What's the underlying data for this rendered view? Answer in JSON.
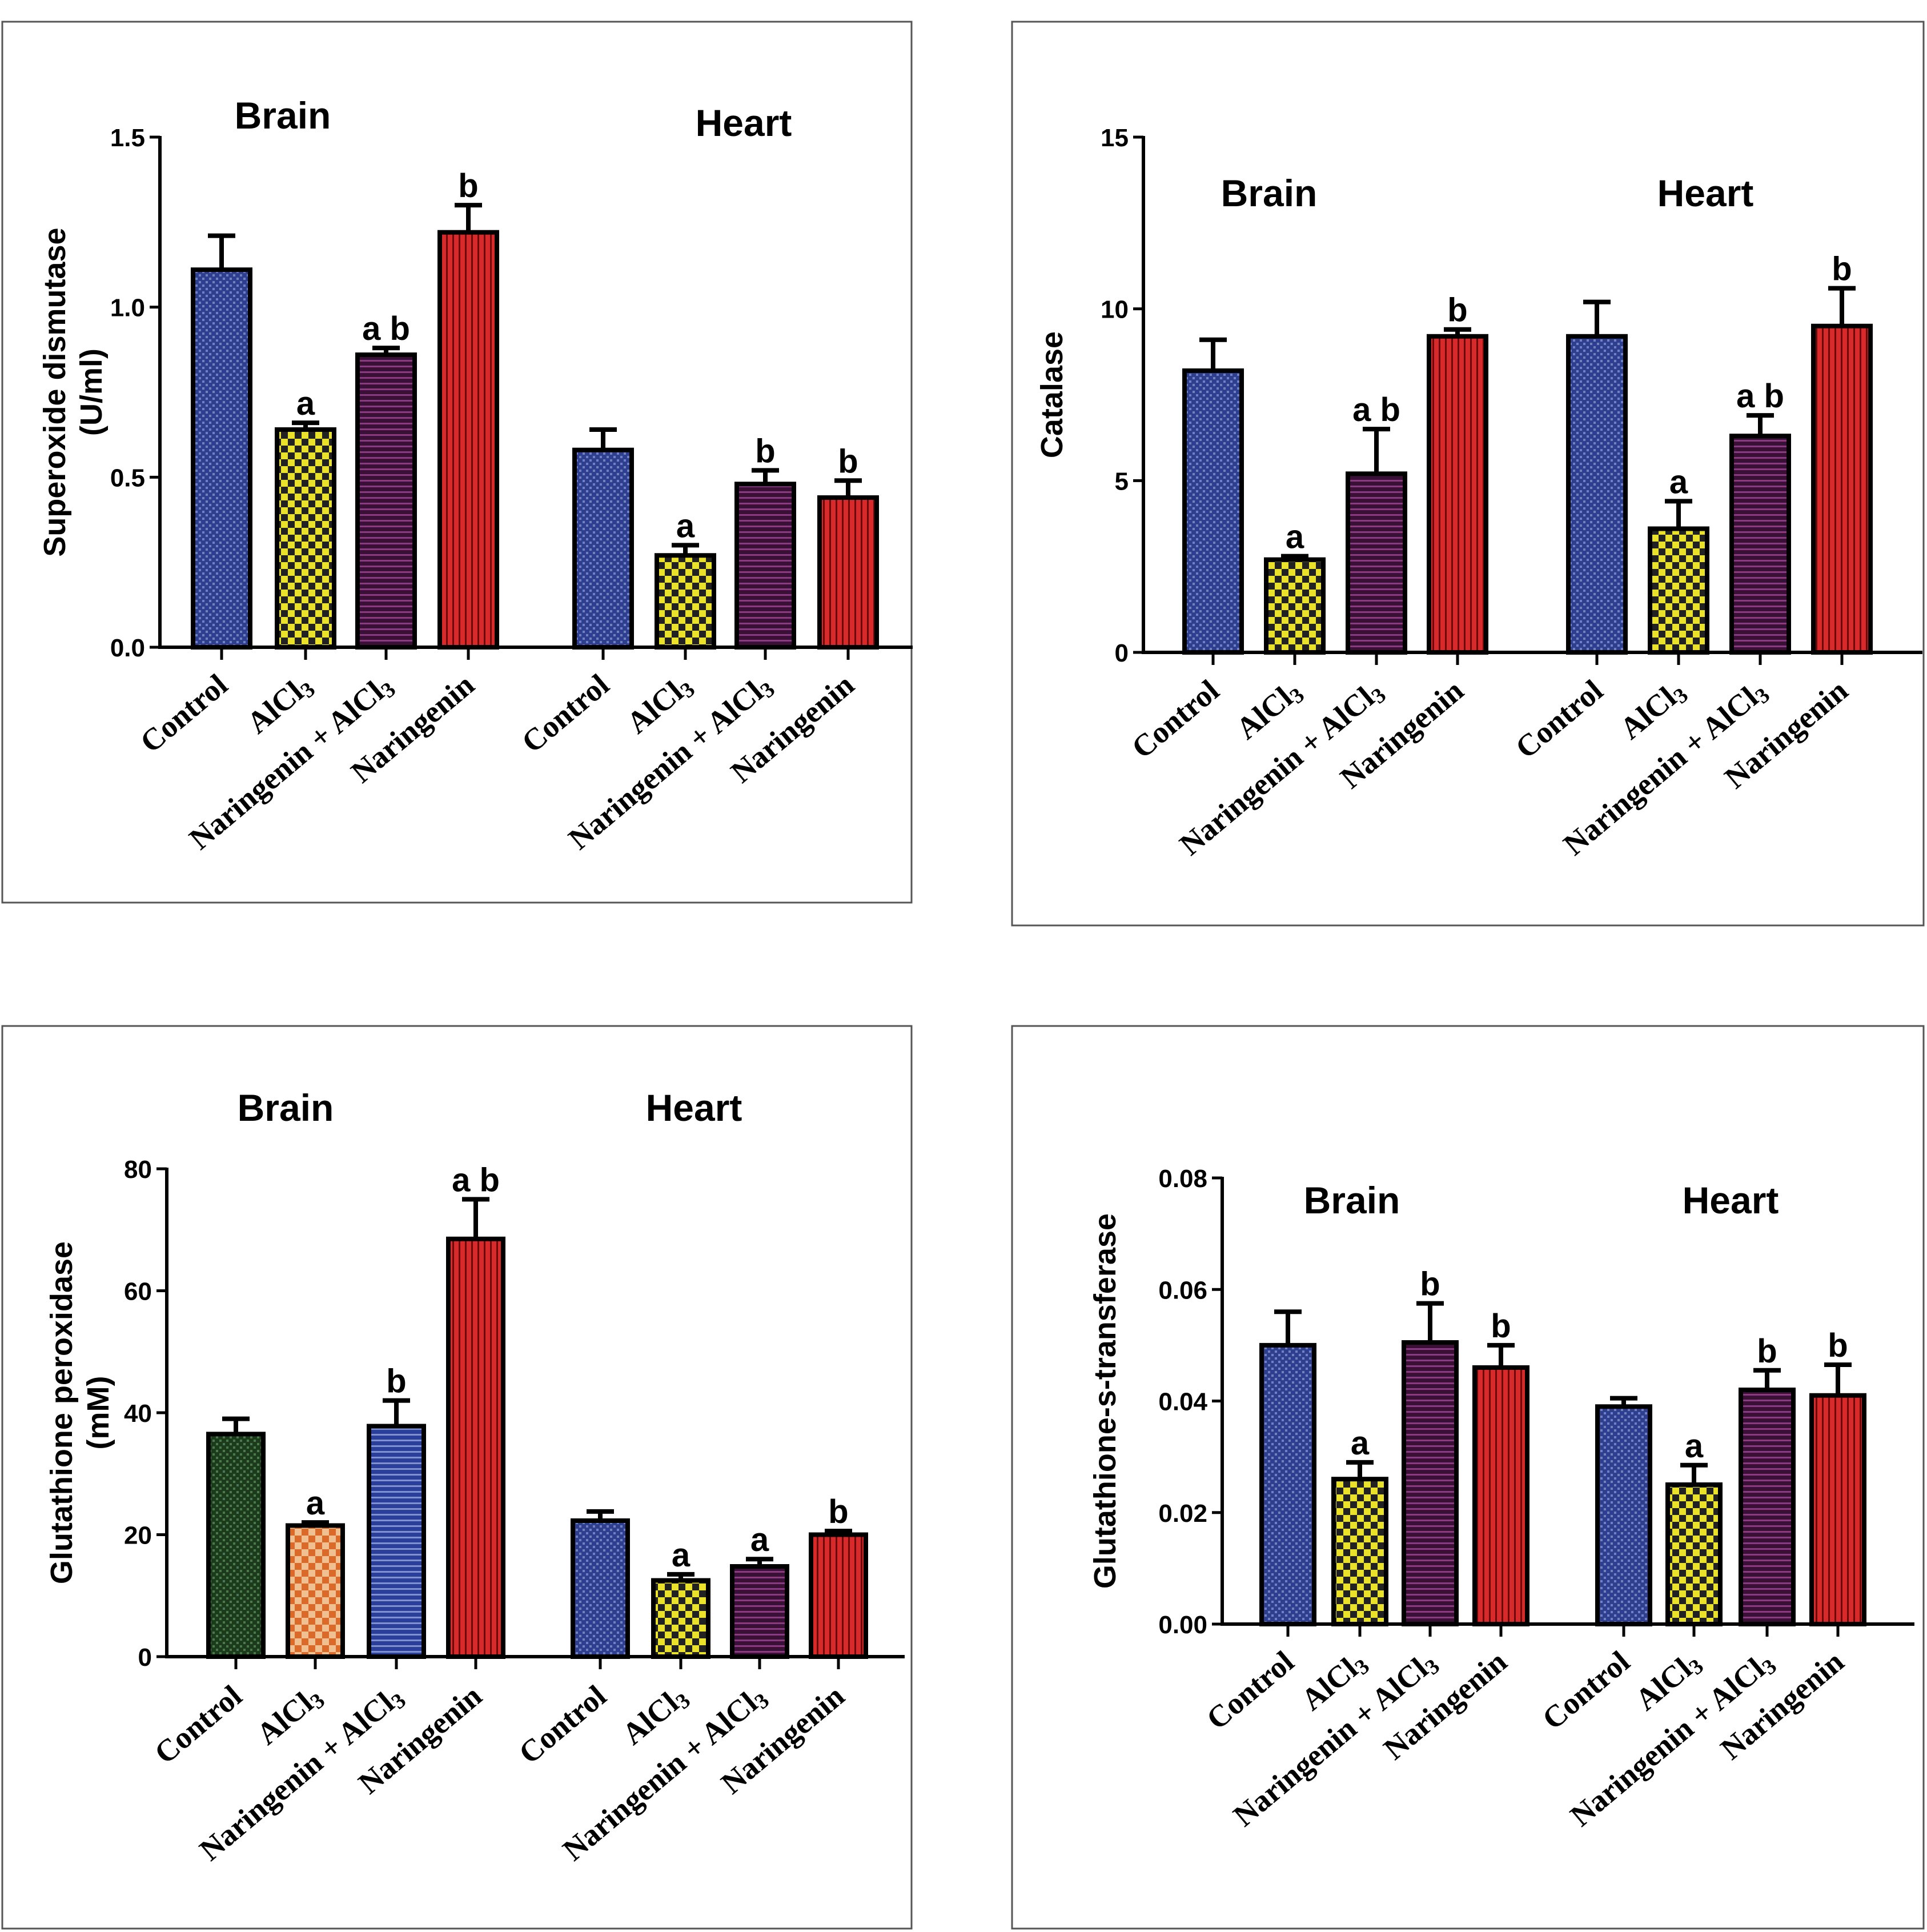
{
  "figure": {
    "colors": {
      "navy": "#2e3f8f",
      "yellow": "#e9e12a",
      "plum": "#3a1037",
      "red": "#d82a2a",
      "darkgreen": "#1c3a1c",
      "orange": "#d96a2a",
      "blue": "#2a3f9a",
      "navy_line": "#7080c0",
      "yellow_line": "#222222",
      "plum_line": "#8a3a80",
      "red_line": "#6a0a0a",
      "darkgreen_line": "#4a7a4a",
      "orange_line": "#f0c090",
      "blue_line": "#8090d0"
    }
  },
  "chart_data": [
    {
      "type": "bar",
      "id": "sod",
      "ylabel_lines": [
        "Superoxide dismutase",
        "(U/ml)"
      ],
      "ylim": [
        0,
        1.5
      ],
      "yticks": [
        "0.0",
        "0.5",
        "1.0",
        "1.5"
      ],
      "groups": [
        {
          "name": "Brain",
          "bars": [
            {
              "category": "Control",
              "value": 1.11,
              "error": 0.1,
              "sig": "",
              "fill": "navy"
            },
            {
              "category": "AlCl3",
              "value": 0.64,
              "error": 0.02,
              "sig": "a",
              "fill": "yellow"
            },
            {
              "category": "Naringenin + AlCl3",
              "value": 0.86,
              "error": 0.02,
              "sig": "a b",
              "fill": "plum"
            },
            {
              "category": "Naringenin",
              "value": 1.22,
              "error": 0.08,
              "sig": "b",
              "fill": "red"
            }
          ]
        },
        {
          "name": "Heart",
          "bars": [
            {
              "category": "Control",
              "value": 0.58,
              "error": 0.06,
              "sig": "",
              "fill": "navy"
            },
            {
              "category": "AlCl3",
              "value": 0.27,
              "error": 0.03,
              "sig": "a",
              "fill": "yellow"
            },
            {
              "category": "Naringenin + AlCl3",
              "value": 0.48,
              "error": 0.04,
              "sig": "b",
              "fill": "plum"
            },
            {
              "category": "Naringenin",
              "value": 0.44,
              "error": 0.05,
              "sig": "b",
              "fill": "red"
            }
          ]
        }
      ]
    },
    {
      "type": "bar",
      "id": "catalase",
      "ylabel_lines": [
        "Catalase"
      ],
      "ylim": [
        0,
        15
      ],
      "yticks": [
        "0",
        "5",
        "10",
        "15"
      ],
      "groups": [
        {
          "name": "Brain",
          "bars": [
            {
              "category": "Control",
              "value": 8.2,
              "error": 0.9,
              "sig": "",
              "fill": "navy"
            },
            {
              "category": "AlCl3",
              "value": 2.7,
              "error": 0.1,
              "sig": "a",
              "fill": "yellow"
            },
            {
              "category": "Naringenin + AlCl3",
              "value": 5.2,
              "error": 1.3,
              "sig": "a b",
              "fill": "plum"
            },
            {
              "category": "Naringenin",
              "value": 9.2,
              "error": 0.2,
              "sig": "b",
              "fill": "red"
            }
          ]
        },
        {
          "name": "Heart",
          "bars": [
            {
              "category": "Control",
              "value": 9.2,
              "error": 1.0,
              "sig": "",
              "fill": "navy"
            },
            {
              "category": "AlCl3",
              "value": 3.6,
              "error": 0.8,
              "sig": "a",
              "fill": "yellow"
            },
            {
              "category": "Naringenin + AlCl3",
              "value": 6.3,
              "error": 0.6,
              "sig": "a b",
              "fill": "plum"
            },
            {
              "category": "Naringenin",
              "value": 9.5,
              "error": 1.1,
              "sig": "b",
              "fill": "red"
            }
          ]
        }
      ]
    },
    {
      "type": "bar",
      "id": "gpx",
      "ylabel_lines": [
        "Glutathione peroxidase",
        "(mM)"
      ],
      "ylim": [
        0,
        80
      ],
      "yticks": [
        "0",
        "20",
        "40",
        "60",
        "80"
      ],
      "groups": [
        {
          "name": "Brain",
          "bars": [
            {
              "category": "Control",
              "value": 36.5,
              "error": 2.5,
              "sig": "",
              "fill": "darkgreen"
            },
            {
              "category": "AlCl3",
              "value": 21.5,
              "error": 0.5,
              "sig": "a",
              "fill": "orange"
            },
            {
              "category": "Naringenin + AlCl3",
              "value": 37.8,
              "error": 4.2,
              "sig": "b",
              "fill": "blue"
            },
            {
              "category": "Naringenin",
              "value": 68.5,
              "error": 6.5,
              "sig": "a b",
              "fill": "red"
            }
          ]
        },
        {
          "name": "Heart",
          "bars": [
            {
              "category": "Control",
              "value": 22.3,
              "error": 1.5,
              "sig": "",
              "fill": "navy"
            },
            {
              "category": "AlCl3",
              "value": 12.5,
              "error": 1.0,
              "sig": "a",
              "fill": "yellow"
            },
            {
              "category": "Naringenin + AlCl3",
              "value": 14.8,
              "error": 1.2,
              "sig": "a",
              "fill": "plum"
            },
            {
              "category": "Naringenin",
              "value": 20.0,
              "error": 0.6,
              "sig": "b",
              "fill": "red"
            }
          ]
        }
      ]
    },
    {
      "type": "bar",
      "id": "gst",
      "ylabel_lines": [
        "Glutathione-s-transferase"
      ],
      "ylim": [
        0,
        0.08
      ],
      "yticks": [
        "0.00",
        "0.02",
        "0.04",
        "0.06",
        "0.08"
      ],
      "groups": [
        {
          "name": "Brain",
          "bars": [
            {
              "category": "Control",
              "value": 0.05,
              "error": 0.006,
              "sig": "",
              "fill": "navy"
            },
            {
              "category": "AlCl3",
              "value": 0.026,
              "error": 0.003,
              "sig": "a",
              "fill": "yellow"
            },
            {
              "category": "Naringenin + AlCl3",
              "value": 0.0505,
              "error": 0.007,
              "sig": "b",
              "fill": "plum"
            },
            {
              "category": "Naringenin",
              "value": 0.046,
              "error": 0.004,
              "sig": "b",
              "fill": "red"
            }
          ]
        },
        {
          "name": "Heart",
          "bars": [
            {
              "category": "Control",
              "value": 0.039,
              "error": 0.0015,
              "sig": "",
              "fill": "navy"
            },
            {
              "category": "AlCl3",
              "value": 0.025,
              "error": 0.0035,
              "sig": "a",
              "fill": "yellow"
            },
            {
              "category": "Naringenin + AlCl3",
              "value": 0.042,
              "error": 0.0035,
              "sig": "b",
              "fill": "plum"
            },
            {
              "category": "Naringenin",
              "value": 0.041,
              "error": 0.0055,
              "sig": "b",
              "fill": "red"
            }
          ]
        }
      ]
    }
  ]
}
